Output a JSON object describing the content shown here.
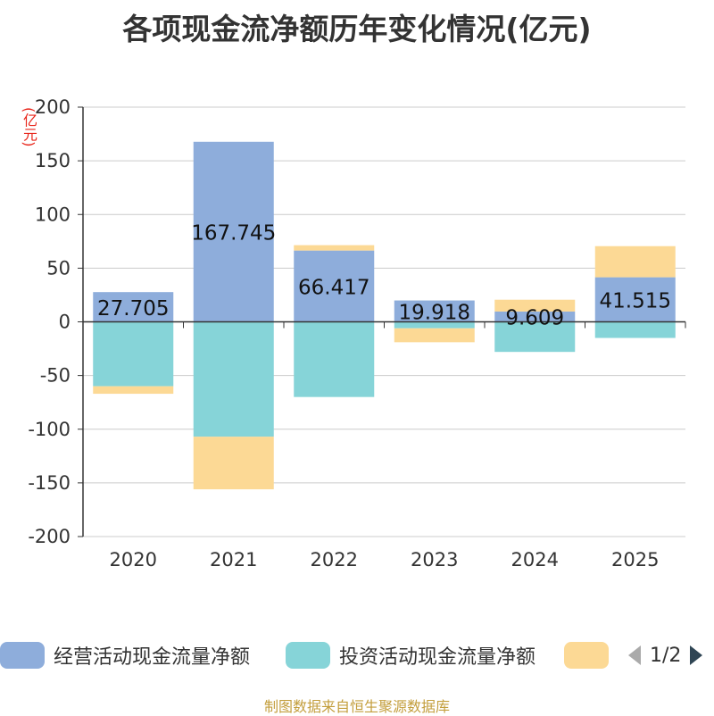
{
  "title": "各项现金流净额历年变化情况(亿元)",
  "unit_label": "(亿元)",
  "source_note": "制图数据来自恒生聚源数据库",
  "legend": {
    "page_indicator": "1/2",
    "items": [
      {
        "label": "经营活动现金流量净额",
        "color": "#8eaddb"
      },
      {
        "label": "投资活动现金流量净额",
        "color": "#86d4d8"
      },
      {
        "label": "",
        "color": "#fcd995"
      }
    ]
  },
  "colors": {
    "operating": "#8eaddb",
    "investing": "#86d4d8",
    "financing": "#fcd995",
    "axis": "#333333",
    "grid": "#cccccc",
    "pager_prev": "#aaaaaa",
    "pager_next": "#2f4554"
  },
  "chart_data": {
    "type": "bar",
    "stacked": true,
    "categories": [
      "2020",
      "2021",
      "2022",
      "2023",
      "2024",
      "2025"
    ],
    "ylim": [
      -200,
      200
    ],
    "yticks": [
      "200",
      "150",
      "100",
      "50",
      "0",
      "-50",
      "-100",
      "-150",
      "-200"
    ],
    "grid": true,
    "legend_position": "bottom",
    "series": [
      {
        "name": "经营活动现金流量净额",
        "values": [
          27.705,
          167.745,
          66.417,
          19.918,
          9.609,
          41.515
        ],
        "data_labels": [
          "27.705",
          "167.745",
          "66.417",
          "19.918",
          "9.609",
          "41.515"
        ]
      },
      {
        "name": "投资活动现金流量净额",
        "values": [
          -60,
          -107,
          -70,
          -6,
          -28,
          -15
        ]
      },
      {
        "values": [
          -7,
          -49,
          5,
          -13,
          11,
          29
        ]
      }
    ]
  }
}
